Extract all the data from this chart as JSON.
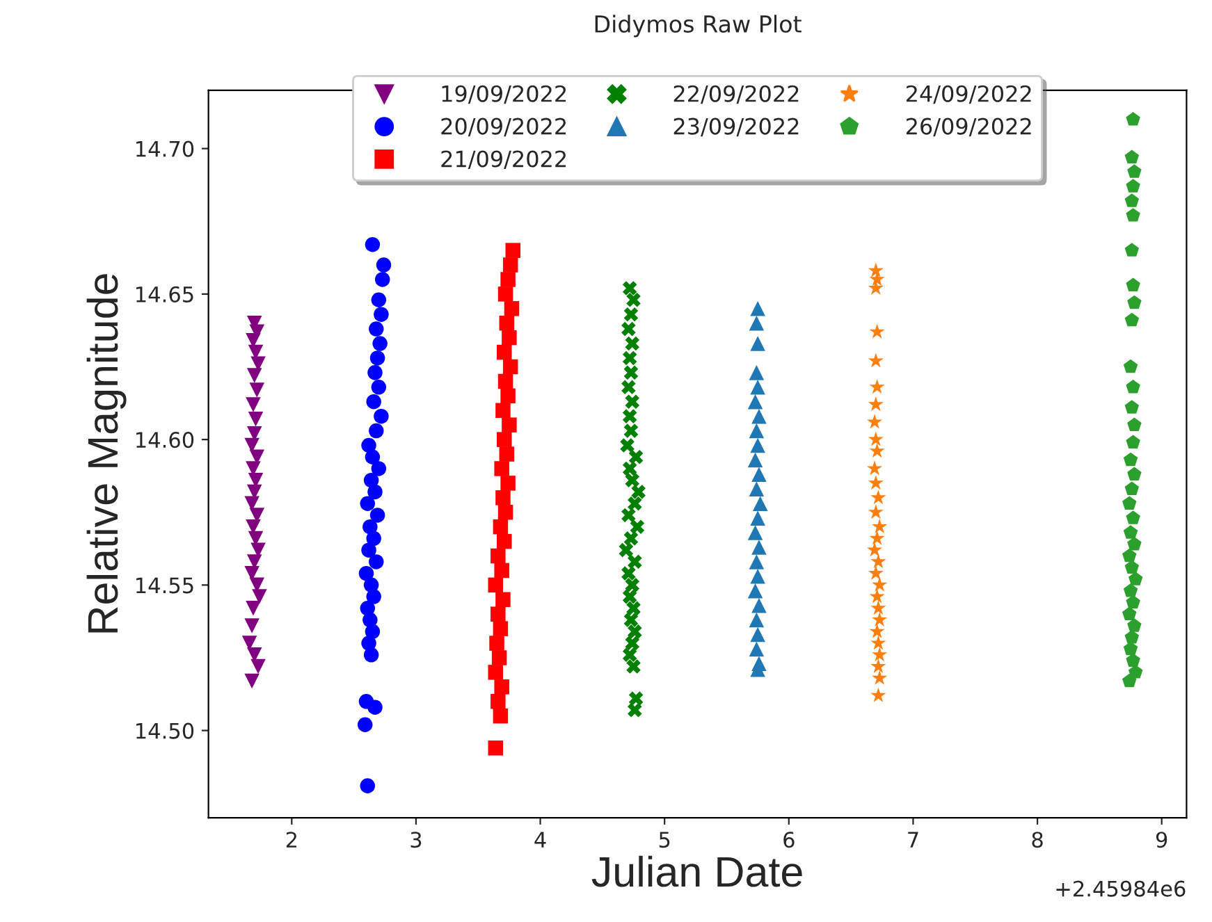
{
  "chart_data": {
    "type": "scatter",
    "title": "Didymos Raw Plot",
    "xlabel": "Julian Date",
    "ylabel": "Relative Magnitude",
    "annotations": [
      "+2.45984e6"
    ],
    "xlim": [
      1.33,
      9.2
    ],
    "xticks": [
      2,
      3,
      4,
      5,
      6,
      7,
      8,
      9
    ],
    "ylim": [
      14.47,
      14.72
    ],
    "yticks": [
      {
        "value": 14.5,
        "label": "14.50"
      },
      {
        "value": 14.55,
        "label": "14.55"
      },
      {
        "value": 14.6,
        "label": "14.60"
      },
      {
        "value": 14.65,
        "label": "14.65"
      },
      {
        "value": 14.7,
        "label": "14.70"
      }
    ],
    "grid": false,
    "legend": "top",
    "series": [
      {
        "name": "19/09/2022",
        "color": "#800080",
        "marker": "triangle_down",
        "x": [
          1.7,
          1.72,
          1.69,
          1.71,
          1.73,
          1.7,
          1.72,
          1.69,
          1.71,
          1.7,
          1.68,
          1.72,
          1.69,
          1.71,
          1.7,
          1.68,
          1.72,
          1.69,
          1.71,
          1.73,
          1.7,
          1.68,
          1.72,
          1.74,
          1.69,
          1.68,
          1.66,
          1.7,
          1.73,
          1.68
        ],
        "values": [
          14.64,
          14.637,
          14.634,
          14.63,
          14.626,
          14.622,
          14.617,
          14.612,
          14.607,
          14.602,
          14.598,
          14.594,
          14.59,
          14.586,
          14.582,
          14.578,
          14.574,
          14.57,
          14.566,
          14.562,
          14.558,
          14.554,
          14.55,
          14.546,
          14.542,
          14.536,
          14.53,
          14.526,
          14.522,
          14.517
        ]
      },
      {
        "name": "20/09/2022",
        "color": "#0000ff",
        "marker": "circle",
        "x": [
          2.65,
          2.74,
          2.73,
          2.7,
          2.72,
          2.68,
          2.71,
          2.69,
          2.67,
          2.7,
          2.66,
          2.72,
          2.68,
          2.62,
          2.65,
          2.7,
          2.64,
          2.67,
          2.61,
          2.69,
          2.63,
          2.66,
          2.62,
          2.68,
          2.6,
          2.64,
          2.66,
          2.61,
          2.63,
          2.65,
          2.62,
          2.64,
          2.6,
          2.67,
          2.59,
          2.61
        ],
        "values": [
          14.667,
          14.66,
          14.655,
          14.648,
          14.643,
          14.638,
          14.633,
          14.628,
          14.623,
          14.618,
          14.613,
          14.608,
          14.603,
          14.598,
          14.594,
          14.59,
          14.586,
          14.582,
          14.578,
          14.574,
          14.57,
          14.566,
          14.562,
          14.558,
          14.554,
          14.55,
          14.546,
          14.542,
          14.538,
          14.534,
          14.53,
          14.526,
          14.51,
          14.508,
          14.502,
          14.481
        ]
      },
      {
        "name": "21/09/2022",
        "color": "#ff0000",
        "marker": "square",
        "x": [
          3.78,
          3.76,
          3.74,
          3.72,
          3.77,
          3.73,
          3.75,
          3.71,
          3.76,
          3.72,
          3.74,
          3.7,
          3.75,
          3.71,
          3.73,
          3.69,
          3.74,
          3.7,
          3.72,
          3.68,
          3.71,
          3.66,
          3.69,
          3.64,
          3.7,
          3.66,
          3.68,
          3.65,
          3.67,
          3.64,
          3.69,
          3.66,
          3.68,
          3.64
        ],
        "values": [
          14.665,
          14.66,
          14.655,
          14.65,
          14.645,
          14.64,
          14.635,
          14.63,
          14.625,
          14.62,
          14.615,
          14.61,
          14.605,
          14.6,
          14.595,
          14.59,
          14.585,
          14.58,
          14.575,
          14.57,
          14.565,
          14.56,
          14.555,
          14.55,
          14.545,
          14.54,
          14.535,
          14.53,
          14.525,
          14.52,
          14.515,
          14.51,
          14.505,
          14.494
        ]
      },
      {
        "name": "22/09/2022",
        "color": "#008000",
        "marker": "cross",
        "x": [
          4.72,
          4.75,
          4.73,
          4.71,
          4.74,
          4.72,
          4.73,
          4.71,
          4.74,
          4.72,
          4.73,
          4.7,
          4.77,
          4.72,
          4.74,
          4.79,
          4.76,
          4.71,
          4.78,
          4.73,
          4.69,
          4.76,
          4.71,
          4.74,
          4.72,
          4.75,
          4.73,
          4.76,
          4.74,
          4.72,
          4.75,
          4.77,
          4.76
        ],
        "values": [
          14.652,
          14.648,
          14.643,
          14.638,
          14.633,
          14.628,
          14.623,
          14.618,
          14.613,
          14.608,
          14.603,
          14.598,
          14.594,
          14.59,
          14.586,
          14.582,
          14.578,
          14.574,
          14.57,
          14.566,
          14.562,
          14.558,
          14.554,
          14.55,
          14.546,
          14.542,
          14.538,
          14.534,
          14.53,
          14.526,
          14.522,
          14.511,
          14.507
        ]
      },
      {
        "name": "23/09/2022",
        "color": "#1f77b4",
        "marker": "triangle",
        "x": [
          5.75,
          5.74,
          5.75,
          5.74,
          5.75,
          5.73,
          5.76,
          5.74,
          5.75,
          5.73,
          5.76,
          5.74,
          5.77,
          5.75,
          5.73,
          5.76,
          5.74,
          5.75,
          5.73,
          5.76,
          5.74,
          5.75,
          5.74,
          5.76,
          5.75
        ],
        "values": [
          14.645,
          14.64,
          14.633,
          14.623,
          14.618,
          14.613,
          14.608,
          14.603,
          14.598,
          14.593,
          14.588,
          14.583,
          14.578,
          14.573,
          14.568,
          14.563,
          14.558,
          14.553,
          14.548,
          14.543,
          14.538,
          14.533,
          14.528,
          14.523,
          14.521
        ]
      },
      {
        "name": "24/09/2022",
        "color": "#ff7f0e",
        "marker": "star",
        "x": [
          6.7,
          6.71,
          6.7,
          6.71,
          6.7,
          6.71,
          6.7,
          6.69,
          6.7,
          6.71,
          6.69,
          6.7,
          6.72,
          6.7,
          6.73,
          6.71,
          6.69,
          6.72,
          6.7,
          6.73,
          6.71,
          6.72,
          6.73,
          6.71,
          6.72,
          6.73,
          6.72,
          6.73,
          6.72
        ],
        "values": [
          14.658,
          14.655,
          14.652,
          14.637,
          14.627,
          14.618,
          14.612,
          14.606,
          14.6,
          14.596,
          14.59,
          14.585,
          14.58,
          14.575,
          14.57,
          14.566,
          14.562,
          14.558,
          14.554,
          14.55,
          14.546,
          14.542,
          14.538,
          14.534,
          14.53,
          14.526,
          14.522,
          14.518,
          14.512
        ]
      },
      {
        "name": "26/09/2022",
        "color": "#2ca02c",
        "x": [
          8.77,
          8.76,
          8.78,
          8.77,
          8.76,
          8.77,
          8.76,
          8.77,
          8.78,
          8.76,
          8.75,
          8.77,
          8.76,
          8.78,
          8.77,
          8.75,
          8.78,
          8.76,
          8.74,
          8.77,
          8.75,
          8.78,
          8.74,
          8.76,
          8.79,
          8.75,
          8.77,
          8.74,
          8.78,
          8.76,
          8.75,
          8.77,
          8.79,
          8.74
        ],
        "values": [
          14.71,
          14.697,
          14.692,
          14.687,
          14.682,
          14.677,
          14.665,
          14.653,
          14.647,
          14.641,
          14.625,
          14.618,
          14.611,
          14.605,
          14.599,
          14.593,
          14.588,
          14.583,
          14.578,
          14.573,
          14.568,
          14.564,
          14.56,
          14.556,
          14.552,
          14.548,
          14.544,
          14.54,
          14.536,
          14.532,
          14.528,
          14.524,
          14.52,
          14.517
        ]
      }
    ]
  }
}
